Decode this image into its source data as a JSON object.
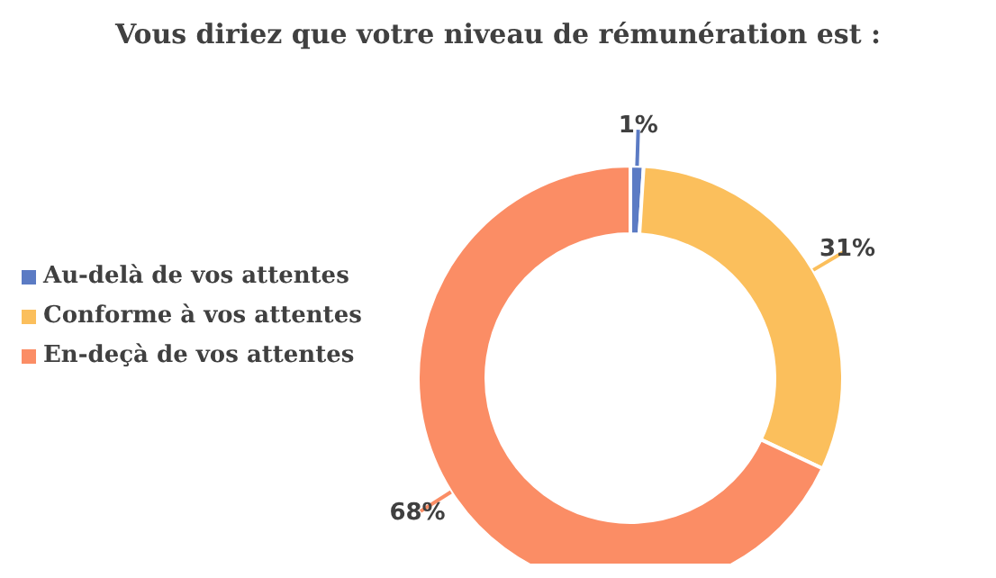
{
  "chart_data": {
    "type": "donut",
    "title": "Vous diriez que votre niveau de rémunération est :",
    "categories": [
      "Au-delà de vos attentes",
      "Conforme à vos attentes",
      "En-deçà de vos attentes"
    ],
    "values": [
      1,
      31,
      68
    ],
    "colors": [
      "#5b7bc4",
      "#fbbf5c",
      "#fb8d65"
    ],
    "value_labels": [
      "1%",
      "31%",
      "68%"
    ],
    "legend": "left"
  }
}
